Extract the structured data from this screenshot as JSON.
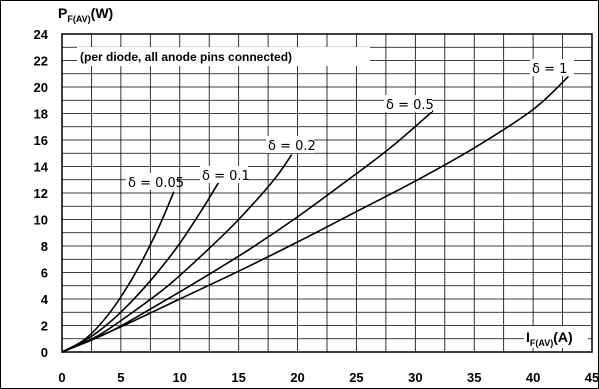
{
  "chart_data": {
    "type": "line",
    "y_axis_label": {
      "main": "P",
      "sub": "F(AV)",
      "unit": "(W)"
    },
    "x_axis_label": {
      "main": "I",
      "sub": "F(AV)",
      "unit": "(A)"
    },
    "annotation": "(per diode, all anode pins connected)",
    "xlim": [
      0,
      45
    ],
    "ylim": [
      0,
      24
    ],
    "x_ticks": [
      0,
      5,
      10,
      15,
      20,
      25,
      30,
      35,
      40,
      45
    ],
    "y_ticks": [
      0,
      2,
      4,
      6,
      8,
      10,
      12,
      14,
      16,
      18,
      20,
      22,
      24
    ],
    "grid": true,
    "series": [
      {
        "name": "δ = 0.05",
        "x": [
          0,
          2,
          4,
          6,
          8,
          9.5
        ],
        "y": [
          0,
          1,
          2.9,
          5.6,
          9,
          12.1
        ]
      },
      {
        "name": "δ = 0.1",
        "x": [
          0,
          2,
          4,
          6,
          8,
          10,
          12,
          13.5
        ],
        "y": [
          0,
          0.9,
          2.2,
          3.9,
          5.9,
          8.2,
          10.9,
          13.1
        ]
      },
      {
        "name": "δ = 0.2",
        "x": [
          0,
          3,
          6,
          9,
          12,
          15,
          18,
          19.5
        ],
        "y": [
          0,
          1.2,
          3,
          5,
          7.4,
          10,
          13,
          14.9
        ]
      },
      {
        "name": "δ = 0.5",
        "x": [
          0,
          4,
          8,
          12,
          16,
          20,
          24,
          28,
          31.5
        ],
        "y": [
          0,
          1.5,
          3.5,
          5.6,
          7.8,
          10.2,
          12.8,
          15.5,
          18.2
        ]
      },
      {
        "name": "δ = 1",
        "x": [
          0,
          5,
          10,
          15,
          20,
          25,
          30,
          35,
          40,
          43
        ],
        "y": [
          0,
          1.9,
          4,
          6.1,
          8.3,
          10.6,
          12.9,
          15.4,
          18.3,
          20.8
        ]
      }
    ]
  }
}
